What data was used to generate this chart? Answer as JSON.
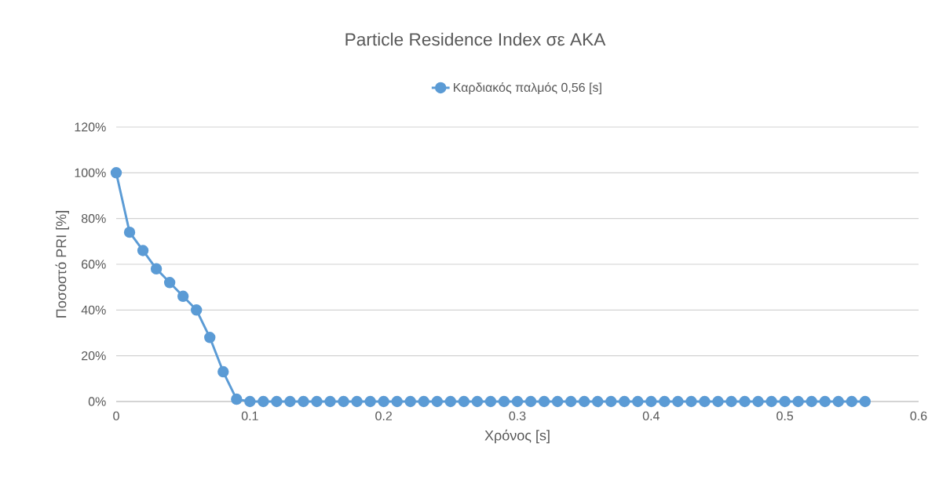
{
  "chart_data": {
    "type": "line",
    "title": "Particle Residence Index σε AKA",
    "xlabel": "Χρόνος [s]",
    "ylabel": "Ποσοστό PRI [%]",
    "x": [
      0,
      0.01,
      0.02,
      0.03,
      0.04,
      0.05,
      0.06,
      0.07,
      0.08,
      0.09,
      0.1,
      0.11,
      0.12,
      0.13,
      0.14,
      0.15,
      0.16,
      0.17,
      0.18,
      0.19,
      0.2,
      0.21,
      0.22,
      0.23,
      0.24,
      0.25,
      0.26,
      0.27,
      0.28,
      0.29,
      0.3,
      0.31,
      0.32,
      0.33,
      0.34,
      0.35,
      0.36,
      0.37,
      0.38,
      0.39,
      0.4,
      0.41,
      0.42,
      0.43,
      0.44,
      0.45,
      0.46,
      0.47,
      0.48,
      0.49,
      0.5,
      0.51,
      0.52,
      0.53,
      0.54,
      0.55,
      0.56
    ],
    "series": [
      {
        "name": "Καρδιακός παλμός 0,56 [s]",
        "color": "#5b9bd5",
        "values": [
          100,
          74,
          66,
          58,
          52,
          46,
          40,
          28,
          13,
          1,
          0,
          0,
          0,
          0,
          0,
          0,
          0,
          0,
          0,
          0,
          0,
          0,
          0,
          0,
          0,
          0,
          0,
          0,
          0,
          0,
          0,
          0,
          0,
          0,
          0,
          0,
          0,
          0,
          0,
          0,
          0,
          0,
          0,
          0,
          0,
          0,
          0,
          0,
          0,
          0,
          0,
          0,
          0,
          0,
          0,
          0,
          0
        ]
      }
    ],
    "xlim": [
      0,
      0.6
    ],
    "xticks": [
      0,
      0.1,
      0.2,
      0.3,
      0.4,
      0.5,
      0.6
    ],
    "ylim": [
      0,
      120
    ],
    "yticks": [
      {
        "value": 0,
        "label": "0%"
      },
      {
        "value": 20,
        "label": "20%"
      },
      {
        "value": 40,
        "label": "40%"
      },
      {
        "value": 60,
        "label": "60%"
      },
      {
        "value": 80,
        "label": "80%"
      },
      {
        "value": 100,
        "label": "100%"
      },
      {
        "value": 120,
        "label": "120%"
      }
    ],
    "grid": "y",
    "legend": "top",
    "marker": "circle",
    "line_style": "solid"
  }
}
